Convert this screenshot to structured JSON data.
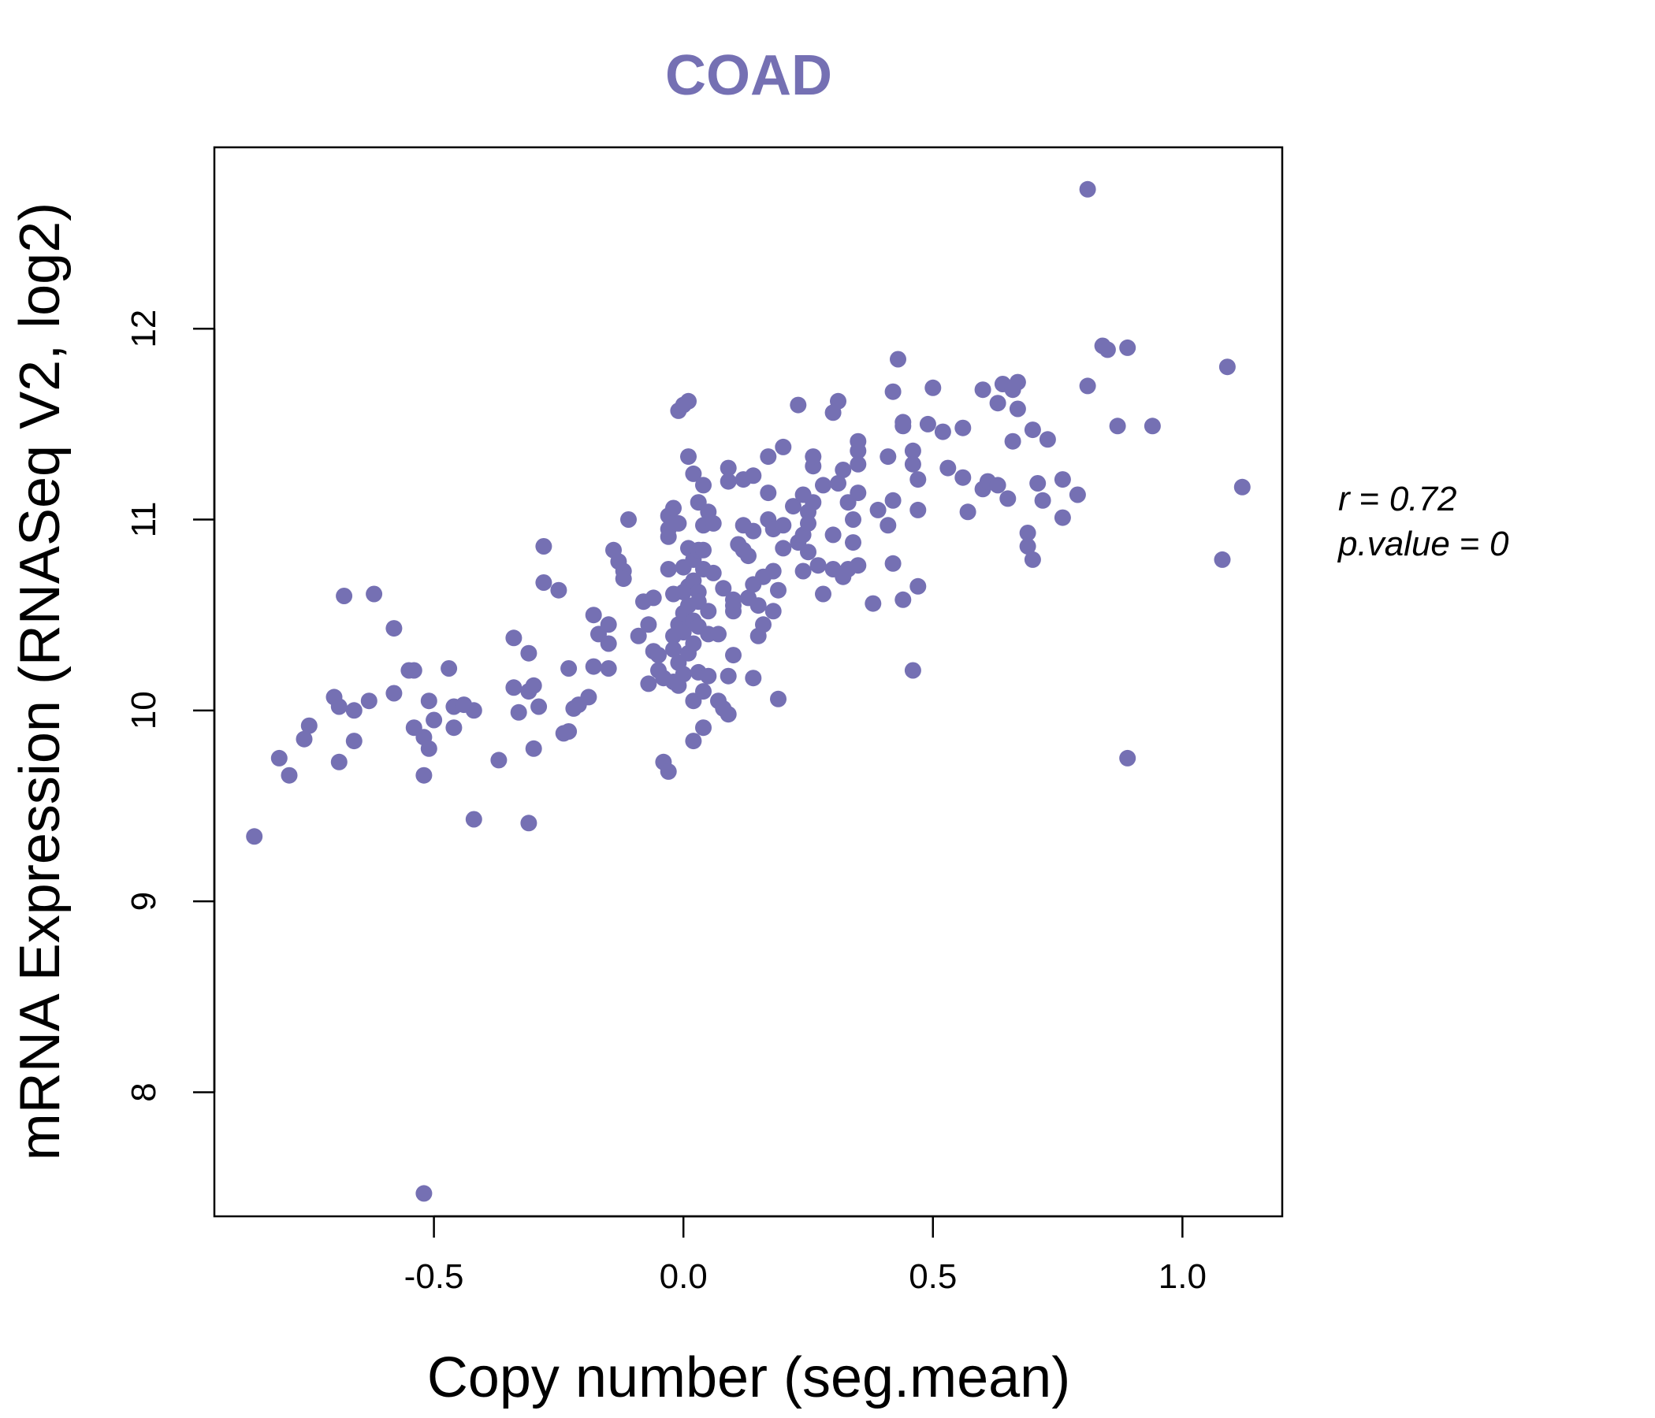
{
  "chart_data": {
    "type": "scatter",
    "title": "COAD",
    "xlabel": "Copy number (seg.mean)",
    "ylabel": "mRNA Expression (RNASeq V2, log2)",
    "xlim": [
      -0.94,
      1.2
    ],
    "ylim": [
      7.35,
      12.95
    ],
    "xticks": [
      -0.5,
      0.0,
      0.5,
      1.0
    ],
    "xtick_labels": [
      "-0.5",
      "0.0",
      "0.5",
      "1.0"
    ],
    "yticks": [
      8,
      9,
      10,
      11,
      12
    ],
    "ytick_labels": [
      "8",
      "9",
      "10",
      "11",
      "12"
    ],
    "grid": false,
    "legend": "none",
    "annotations": {
      "r_label": "r",
      "r_value": "0.72",
      "p_label": "p.value",
      "p_value": "0"
    },
    "colors": {
      "points": "#7570b3",
      "title": "#7570b3",
      "axis": "#000000"
    },
    "points": [
      [
        -0.86,
        9.34
      ],
      [
        -0.81,
        9.75
      ],
      [
        -0.79,
        9.66
      ],
      [
        -0.76,
        9.85
      ],
      [
        -0.75,
        9.92
      ],
      [
        -0.7,
        10.07
      ],
      [
        -0.69,
        10.02
      ],
      [
        -0.69,
        9.73
      ],
      [
        -0.68,
        10.6
      ],
      [
        -0.66,
        9.84
      ],
      [
        -0.66,
        10.0
      ],
      [
        -0.63,
        10.05
      ],
      [
        -0.62,
        10.61
      ],
      [
        -0.58,
        10.09
      ],
      [
        -0.58,
        10.43
      ],
      [
        -0.55,
        10.21
      ],
      [
        -0.54,
        10.21
      ],
      [
        -0.54,
        9.91
      ],
      [
        -0.52,
        9.86
      ],
      [
        -0.52,
        9.66
      ],
      [
        -0.51,
        10.05
      ],
      [
        -0.51,
        9.8
      ],
      [
        -0.5,
        9.95
      ],
      [
        -0.47,
        10.22
      ],
      [
        -0.46,
        9.91
      ],
      [
        -0.46,
        10.02
      ],
      [
        -0.44,
        10.03
      ],
      [
        -0.42,
        10.0
      ],
      [
        -0.42,
        9.43
      ],
      [
        -0.37,
        9.74
      ],
      [
        -0.34,
        10.38
      ],
      [
        -0.34,
        10.12
      ],
      [
        -0.33,
        9.99
      ],
      [
        -0.31,
        10.3
      ],
      [
        -0.31,
        10.1
      ],
      [
        -0.3,
        10.13
      ],
      [
        -0.3,
        9.8
      ],
      [
        -0.29,
        10.02
      ],
      [
        -0.28,
        10.86
      ],
      [
        -0.28,
        10.67
      ],
      [
        -0.31,
        9.41
      ],
      [
        -0.25,
        10.63
      ],
      [
        -0.24,
        9.88
      ],
      [
        -0.23,
        9.89
      ],
      [
        -0.23,
        10.22
      ],
      [
        -0.22,
        10.01
      ],
      [
        -0.21,
        10.03
      ],
      [
        -0.19,
        10.07
      ],
      [
        -0.18,
        10.23
      ],
      [
        -0.18,
        10.5
      ],
      [
        -0.17,
        10.4
      ],
      [
        -0.15,
        10.35
      ],
      [
        -0.15,
        10.45
      ],
      [
        -0.15,
        10.22
      ],
      [
        -0.14,
        10.84
      ],
      [
        -0.13,
        10.78
      ],
      [
        -0.12,
        10.73
      ],
      [
        -0.12,
        10.69
      ],
      [
        -0.11,
        11.0
      ],
      [
        -0.09,
        10.39
      ],
      [
        -0.08,
        10.57
      ],
      [
        -0.07,
        10.45
      ],
      [
        -0.07,
        10.14
      ],
      [
        -0.06,
        10.31
      ],
      [
        -0.06,
        10.59
      ],
      [
        -0.05,
        10.29
      ],
      [
        -0.05,
        10.21
      ],
      [
        -0.04,
        10.17
      ],
      [
        -0.04,
        9.73
      ],
      [
        -0.03,
        9.68
      ],
      [
        -0.03,
        10.74
      ],
      [
        -0.03,
        10.91
      ],
      [
        -0.03,
        10.95
      ],
      [
        -0.03,
        11.02
      ],
      [
        -0.02,
        10.61
      ],
      [
        -0.02,
        10.39
      ],
      [
        -0.02,
        10.15
      ],
      [
        -0.02,
        10.32
      ],
      [
        -0.02,
        11.06
      ],
      [
        -0.01,
        10.45
      ],
      [
        -0.01,
        10.25
      ],
      [
        -0.01,
        10.13
      ],
      [
        -0.01,
        11.57
      ],
      [
        -0.01,
        10.98
      ],
      [
        0.0,
        10.62
      ],
      [
        0.0,
        10.51
      ],
      [
        0.0,
        10.75
      ],
      [
        0.0,
        10.19
      ],
      [
        0.0,
        10.41
      ],
      [
        0.0,
        11.6
      ],
      [
        0.01,
        11.62
      ],
      [
        0.01,
        10.55
      ],
      [
        0.01,
        10.65
      ],
      [
        0.01,
        11.33
      ],
      [
        0.01,
        10.3
      ],
      [
        0.01,
        10.85
      ],
      [
        0.02,
        10.79
      ],
      [
        0.02,
        10.68
      ],
      [
        0.02,
        10.47
      ],
      [
        0.02,
        10.35
      ],
      [
        0.02,
        9.84
      ],
      [
        0.02,
        10.05
      ],
      [
        0.02,
        11.24
      ],
      [
        0.03,
        11.09
      ],
      [
        0.03,
        10.84
      ],
      [
        0.03,
        10.62
      ],
      [
        0.03,
        10.44
      ],
      [
        0.03,
        10.2
      ],
      [
        0.03,
        10.57
      ],
      [
        0.04,
        10.74
      ],
      [
        0.04,
        10.1
      ],
      [
        0.04,
        11.18
      ],
      [
        0.04,
        10.97
      ],
      [
        0.04,
        9.91
      ],
      [
        0.04,
        10.84
      ],
      [
        0.05,
        10.52
      ],
      [
        0.05,
        10.4
      ],
      [
        0.05,
        10.18
      ],
      [
        0.05,
        11.04
      ],
      [
        0.06,
        10.72
      ],
      [
        0.06,
        10.98
      ],
      [
        0.07,
        10.05
      ],
      [
        0.07,
        10.4
      ],
      [
        0.08,
        10.64
      ],
      [
        0.08,
        10.01
      ],
      [
        0.09,
        9.98
      ],
      [
        0.09,
        11.27
      ],
      [
        0.09,
        11.2
      ],
      [
        0.09,
        10.18
      ],
      [
        0.1,
        10.55
      ],
      [
        0.1,
        10.29
      ],
      [
        0.1,
        10.52
      ],
      [
        0.1,
        10.58
      ],
      [
        0.11,
        10.87
      ],
      [
        0.12,
        10.97
      ],
      [
        0.12,
        11.21
      ],
      [
        0.12,
        10.84
      ],
      [
        0.13,
        10.59
      ],
      [
        0.13,
        10.81
      ],
      [
        0.14,
        11.23
      ],
      [
        0.14,
        10.66
      ],
      [
        0.14,
        10.17
      ],
      [
        0.14,
        10.94
      ],
      [
        0.15,
        10.39
      ],
      [
        0.15,
        10.55
      ],
      [
        0.16,
        10.45
      ],
      [
        0.16,
        10.7
      ],
      [
        0.17,
        11.0
      ],
      [
        0.17,
        11.33
      ],
      [
        0.17,
        11.14
      ],
      [
        0.18,
        10.95
      ],
      [
        0.18,
        10.73
      ],
      [
        0.18,
        10.52
      ],
      [
        0.19,
        10.06
      ],
      [
        0.19,
        10.63
      ],
      [
        0.2,
        10.97
      ],
      [
        0.2,
        10.85
      ],
      [
        0.2,
        11.38
      ],
      [
        0.22,
        11.07
      ],
      [
        0.23,
        10.88
      ],
      [
        0.23,
        11.6
      ],
      [
        0.24,
        10.73
      ],
      [
        0.24,
        10.92
      ],
      [
        0.24,
        11.13
      ],
      [
        0.25,
        11.04
      ],
      [
        0.25,
        10.98
      ],
      [
        0.25,
        10.83
      ],
      [
        0.26,
        11.09
      ],
      [
        0.26,
        11.28
      ],
      [
        0.26,
        11.33
      ],
      [
        0.27,
        10.76
      ],
      [
        0.28,
        10.61
      ],
      [
        0.28,
        11.18
      ],
      [
        0.3,
        11.56
      ],
      [
        0.3,
        10.92
      ],
      [
        0.3,
        10.74
      ],
      [
        0.31,
        11.19
      ],
      [
        0.31,
        11.62
      ],
      [
        0.32,
        11.26
      ],
      [
        0.32,
        10.7
      ],
      [
        0.33,
        11.09
      ],
      [
        0.33,
        10.74
      ],
      [
        0.34,
        10.88
      ],
      [
        0.34,
        11.0
      ],
      [
        0.35,
        11.14
      ],
      [
        0.35,
        11.41
      ],
      [
        0.35,
        11.36
      ],
      [
        0.35,
        10.76
      ],
      [
        0.35,
        11.29
      ],
      [
        0.38,
        10.56
      ],
      [
        0.39,
        11.05
      ],
      [
        0.41,
        11.33
      ],
      [
        0.41,
        10.97
      ],
      [
        0.42,
        10.77
      ],
      [
        0.42,
        11.67
      ],
      [
        0.42,
        11.1
      ],
      [
        0.43,
        11.84
      ],
      [
        0.44,
        11.49
      ],
      [
        0.44,
        11.51
      ],
      [
        0.44,
        10.58
      ],
      [
        0.46,
        11.36
      ],
      [
        0.46,
        11.29
      ],
      [
        0.46,
        10.21
      ],
      [
        0.47,
        11.05
      ],
      [
        0.47,
        11.21
      ],
      [
        0.47,
        10.65
      ],
      [
        0.49,
        11.5
      ],
      [
        0.5,
        11.69
      ],
      [
        0.52,
        11.46
      ],
      [
        0.53,
        11.27
      ],
      [
        0.56,
        11.48
      ],
      [
        0.56,
        11.22
      ],
      [
        0.57,
        11.04
      ],
      [
        0.6,
        11.68
      ],
      [
        0.6,
        11.16
      ],
      [
        0.61,
        11.2
      ],
      [
        0.63,
        11.18
      ],
      [
        0.63,
        11.61
      ],
      [
        0.64,
        11.71
      ],
      [
        0.65,
        11.11
      ],
      [
        0.66,
        11.41
      ],
      [
        0.66,
        11.68
      ],
      [
        0.67,
        11.72
      ],
      [
        0.67,
        11.58
      ],
      [
        0.69,
        10.93
      ],
      [
        0.69,
        10.86
      ],
      [
        0.7,
        11.47
      ],
      [
        0.7,
        10.79
      ],
      [
        0.71,
        11.19
      ],
      [
        0.72,
        11.1
      ],
      [
        0.73,
        11.42
      ],
      [
        0.76,
        11.21
      ],
      [
        0.76,
        11.01
      ],
      [
        0.79,
        11.13
      ],
      [
        0.81,
        11.7
      ],
      [
        0.81,
        12.73
      ],
      [
        0.84,
        11.91
      ],
      [
        0.85,
        11.89
      ],
      [
        0.87,
        11.49
      ],
      [
        0.89,
        11.9
      ],
      [
        0.89,
        9.75
      ],
      [
        0.94,
        11.49
      ],
      [
        1.08,
        10.79
      ],
      [
        1.09,
        11.8
      ],
      [
        1.12,
        11.17
      ],
      [
        -0.52,
        7.47
      ]
    ]
  }
}
